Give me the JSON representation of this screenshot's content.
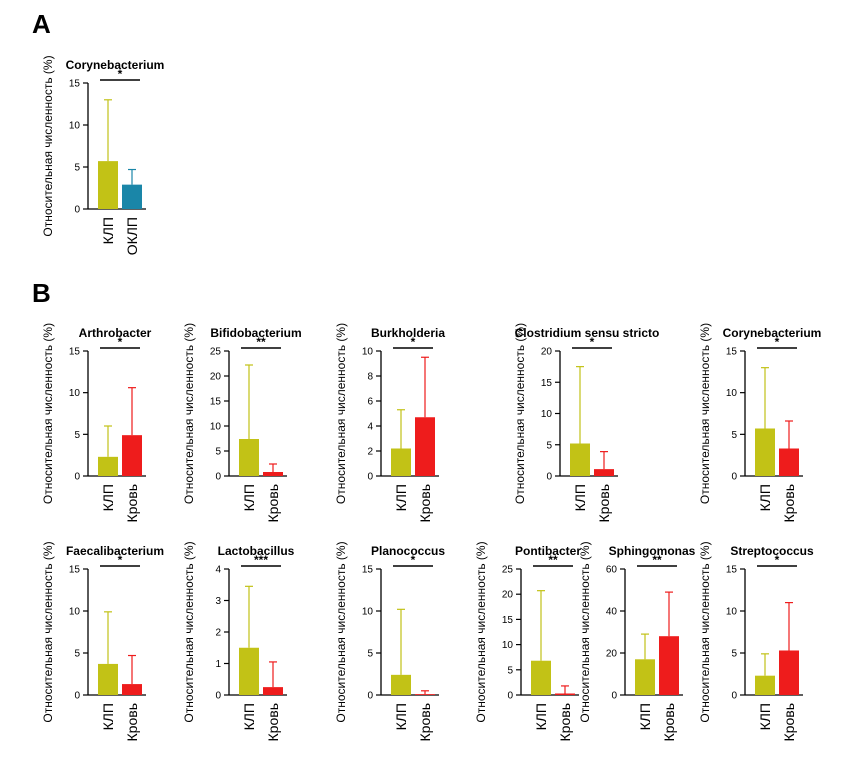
{
  "panels": [
    {
      "letter": "A"
    },
    {
      "letter": "B"
    }
  ],
  "colors": {
    "klp": "#c2c216",
    "oklp": "#1a86a8",
    "krov": "#ee1c1c"
  },
  "chart_data": [
    {
      "type": "bar",
      "panel": "A",
      "title": "Corynebacterium",
      "categories": [
        "КЛП",
        "ОКЛП"
      ],
      "values": [
        5.7,
        2.9
      ],
      "error_upper": [
        13.0,
        4.7
      ],
      "bar_colors": [
        "klp",
        "oklp"
      ],
      "ylabel": "Относительная численность (%)",
      "ylim": [
        0,
        15
      ],
      "yticks": [
        0,
        5,
        10,
        15
      ],
      "significance": "*"
    },
    {
      "type": "bar",
      "panel": "B",
      "title": "Arthrobacter",
      "categories": [
        "КЛП",
        "Кровь"
      ],
      "values": [
        2.3,
        4.9
      ],
      "error_upper": [
        6.0,
        10.6
      ],
      "bar_colors": [
        "klp",
        "krov"
      ],
      "ylabel": "Относительная численность (%)",
      "ylim": [
        0,
        15
      ],
      "yticks": [
        0,
        5,
        10,
        15
      ],
      "significance": "*"
    },
    {
      "type": "bar",
      "panel": "B",
      "title": "Bifidobacterium",
      "categories": [
        "КЛП",
        "Кровь"
      ],
      "values": [
        7.4,
        0.8
      ],
      "error_upper": [
        22.2,
        2.4
      ],
      "bar_colors": [
        "klp",
        "krov"
      ],
      "ylabel": "Относительная численность (%)",
      "ylim": [
        0,
        25
      ],
      "yticks": [
        0,
        5,
        10,
        15,
        20,
        25
      ],
      "significance": "**"
    },
    {
      "type": "bar",
      "panel": "B",
      "title": "Burkholderia",
      "categories": [
        "КЛП",
        "Кровь"
      ],
      "values": [
        2.2,
        4.7
      ],
      "error_upper": [
        5.3,
        9.5
      ],
      "bar_colors": [
        "klp",
        "krov"
      ],
      "ylabel": "Относительная численность (%)",
      "ylim": [
        0,
        10
      ],
      "yticks": [
        0,
        2,
        4,
        6,
        8,
        10
      ],
      "significance": "*"
    },
    {
      "type": "bar",
      "panel": "B",
      "title": "Clostridium sensu stricto",
      "categories": [
        "КЛП",
        "Кровь"
      ],
      "values": [
        5.2,
        1.1
      ],
      "error_upper": [
        17.5,
        3.9
      ],
      "bar_colors": [
        "klp",
        "krov"
      ],
      "ylabel": "Относительная численность (%)",
      "ylim": [
        0,
        20
      ],
      "yticks": [
        0,
        5,
        10,
        15,
        20
      ],
      "significance": "*"
    },
    {
      "type": "bar",
      "panel": "B",
      "title": "Corynebacterium",
      "categories": [
        "КЛП",
        "Кровь"
      ],
      "values": [
        5.7,
        3.3
      ],
      "error_upper": [
        13.0,
        6.6
      ],
      "bar_colors": [
        "klp",
        "krov"
      ],
      "ylabel": "Относительная численность (%)",
      "ylim": [
        0,
        15
      ],
      "yticks": [
        0,
        5,
        10,
        15
      ],
      "significance": "*"
    },
    {
      "type": "bar",
      "panel": "B",
      "title": "Faecalibacterium",
      "categories": [
        "КЛП",
        "Кровь"
      ],
      "values": [
        3.7,
        1.3
      ],
      "error_upper": [
        9.9,
        4.7
      ],
      "bar_colors": [
        "klp",
        "krov"
      ],
      "ylabel": "Относительная численность (%)",
      "ylim": [
        0,
        15
      ],
      "yticks": [
        0,
        5,
        10,
        15
      ],
      "significance": "*"
    },
    {
      "type": "bar",
      "panel": "B",
      "title": "Lactobacillus",
      "categories": [
        "КЛП",
        "Кровь"
      ],
      "values": [
        1.5,
        0.25
      ],
      "error_upper": [
        3.45,
        1.05
      ],
      "bar_colors": [
        "klp",
        "krov"
      ],
      "ylabel": "Относительная численность (%)",
      "ylim": [
        0,
        4
      ],
      "yticks": [
        0,
        1,
        2,
        3,
        4
      ],
      "significance": "***"
    },
    {
      "type": "bar",
      "panel": "B",
      "title": "Planococcus",
      "categories": [
        "КЛП",
        "Кровь"
      ],
      "values": [
        2.4,
        0.1
      ],
      "error_upper": [
        10.2,
        0.5
      ],
      "bar_colors": [
        "klp",
        "krov"
      ],
      "ylabel": "Относительная численность (%)",
      "ylim": [
        0,
        15
      ],
      "yticks": [
        0,
        5,
        10,
        15
      ],
      "significance": "*"
    },
    {
      "type": "bar",
      "panel": "B",
      "title": "Pontibacter",
      "categories": [
        "КЛП",
        "Кровь"
      ],
      "values": [
        6.8,
        0.3
      ],
      "error_upper": [
        20.7,
        1.8
      ],
      "bar_colors": [
        "klp",
        "krov"
      ],
      "ylabel": "Относительная численность (%)",
      "ylim": [
        0,
        25
      ],
      "yticks": [
        0,
        5,
        10,
        15,
        20,
        25
      ],
      "significance": "**"
    },
    {
      "type": "bar",
      "panel": "B",
      "title": "Sphingomonas",
      "categories": [
        "КЛП",
        "Кровь"
      ],
      "values": [
        17.0,
        28.0
      ],
      "error_upper": [
        29.0,
        49.0
      ],
      "bar_colors": [
        "klp",
        "krov"
      ],
      "ylabel": "Относительная численность (%)",
      "ylim": [
        0,
        60
      ],
      "yticks": [
        0,
        20,
        40,
        60
      ],
      "significance": "**"
    },
    {
      "type": "bar",
      "panel": "B",
      "title": "Streptococcus",
      "categories": [
        "КЛП",
        "Кровь"
      ],
      "values": [
        2.3,
        5.3
      ],
      "error_upper": [
        4.9,
        11.0
      ],
      "bar_colors": [
        "klp",
        "krov"
      ],
      "ylabel": "Относительная численность (%)",
      "ylim": [
        0,
        15
      ],
      "yticks": [
        0,
        5,
        10,
        15
      ],
      "significance": "*"
    }
  ]
}
